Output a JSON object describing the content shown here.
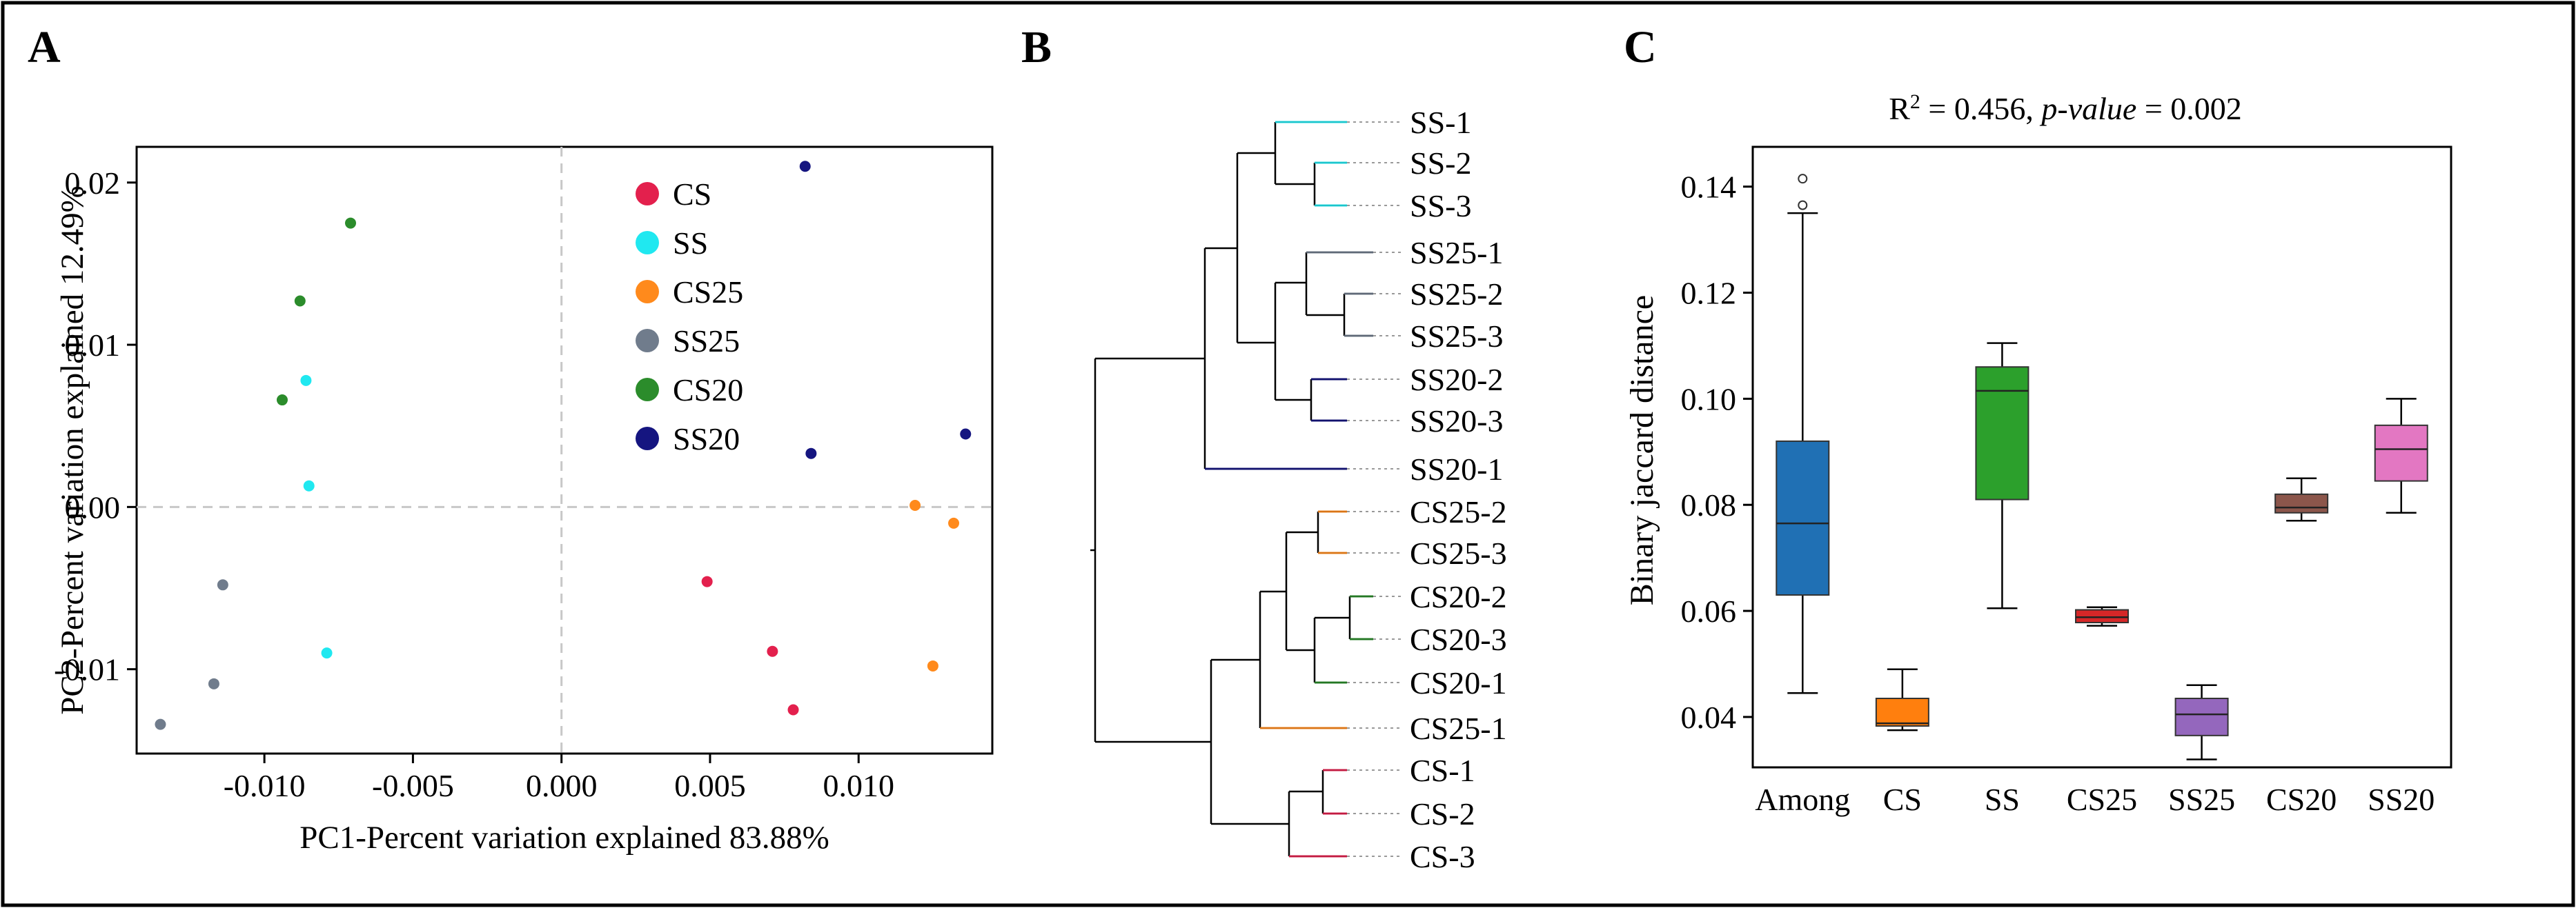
{
  "figure": {
    "labels": {
      "a": "A",
      "b": "B",
      "c": "C"
    }
  },
  "colors": {
    "CS": "#e3204d",
    "SS": "#20e8f0",
    "CS25": "#ff8a1c",
    "SS25": "#707c8c",
    "CS20": "#2b8c2b",
    "SS20": "#151580",
    "axis": "#000000",
    "zero": "#c8c8c8"
  },
  "chart_data": [
    {
      "panel": "A",
      "type": "scatter",
      "xlabel": "PC1-Percent variation explained 83.88%",
      "ylabel": "PC2-Percent variation explained 12.49%",
      "xlim": [
        -0.0143,
        0.0145
      ],
      "ylim": [
        -0.0152,
        0.0222
      ],
      "xticks": [
        -0.01,
        -0.005,
        0.0,
        0.005,
        0.01
      ],
      "xtick_labels": [
        "-0.010",
        "-0.005",
        "0.000",
        "0.005",
        "0.010"
      ],
      "yticks": [
        -0.01,
        0.0,
        0.01,
        0.02
      ],
      "ytick_labels": [
        "-0.01",
        "0.00",
        "0.01",
        "0.02"
      ],
      "legend_position": "top-center",
      "series": [
        {
          "name": "CS",
          "points": [
            [
              0.0049,
              -0.0046
            ],
            [
              0.0071,
              -0.0089
            ],
            [
              0.0078,
              -0.0125
            ]
          ]
        },
        {
          "name": "SS",
          "points": [
            [
              -0.0086,
              0.0078
            ],
            [
              -0.0085,
              0.0013
            ],
            [
              -0.0079,
              -0.009
            ]
          ]
        },
        {
          "name": "CS25",
          "points": [
            [
              0.0119,
              0.0001
            ],
            [
              0.0132,
              -0.001
            ],
            [
              0.0125,
              -0.0098
            ]
          ]
        },
        {
          "name": "SS25",
          "points": [
            [
              -0.0114,
              -0.0048
            ],
            [
              -0.0117,
              -0.0109
            ],
            [
              -0.0135,
              -0.0134
            ]
          ]
        },
        {
          "name": "CS20",
          "points": [
            [
              -0.0071,
              0.0175
            ],
            [
              -0.0088,
              0.0127
            ],
            [
              -0.0094,
              0.0066
            ]
          ]
        },
        {
          "name": "SS20",
          "points": [
            [
              0.0082,
              0.021
            ],
            [
              0.0084,
              0.0033
            ],
            [
              0.0136,
              0.0045
            ]
          ]
        }
      ]
    },
    {
      "panel": "B",
      "type": "dendrogram",
      "leaves": [
        "SS-1",
        "SS-2",
        "SS-3",
        "SS25-1",
        "SS25-2",
        "SS25-3",
        "SS20-2",
        "SS20-3",
        "SS20-1",
        "CS25-2",
        "CS25-3",
        "CS20-2",
        "CS20-3",
        "CS20-1",
        "CS25-1",
        "CS-1",
        "CS-2",
        "CS-3"
      ],
      "leaf_groups": [
        "SS",
        "SS",
        "SS",
        "SS25",
        "SS25",
        "SS25",
        "SS20",
        "SS20",
        "SS20",
        "CS25",
        "CS25",
        "CS20",
        "CS20",
        "CS20",
        "CS25",
        "CS",
        "CS",
        "CS"
      ]
    },
    {
      "panel": "C",
      "type": "box",
      "title_parts": [
        "R",
        "2",
        " = 0.456, ",
        "p-value",
        " = 0.002"
      ],
      "xlabel": "",
      "ylabel": "Binary jaccard distance",
      "ylim": [
        0.0305,
        0.1475
      ],
      "yticks": [
        0.04,
        0.06,
        0.08,
        0.1,
        0.12,
        0.14
      ],
      "ytick_labels": [
        "0.04",
        "0.06",
        "0.08",
        "0.10",
        "0.12",
        "0.14"
      ],
      "categories": [
        "Among",
        "CS",
        "SS",
        "CS25",
        "SS25",
        "CS20",
        "SS20"
      ],
      "box_colors": [
        "#2070b4",
        "#ff7f0e",
        "#2ca02c",
        "#d62728",
        "#9467bd",
        "#8c564b",
        "#e377c2"
      ],
      "boxes": [
        {
          "min": 0.0445,
          "q1": 0.063,
          "median": 0.0765,
          "q3": 0.092,
          "max": 0.135,
          "outliers": [
            0.1365,
            0.1415
          ]
        },
        {
          "min": 0.0375,
          "q1": 0.0383,
          "median": 0.0388,
          "q3": 0.0435,
          "max": 0.049,
          "outliers": []
        },
        {
          "min": 0.0605,
          "q1": 0.081,
          "median": 0.1015,
          "q3": 0.106,
          "max": 0.1105,
          "outliers": []
        },
        {
          "min": 0.0572,
          "q1": 0.0578,
          "median": 0.0588,
          "q3": 0.0602,
          "max": 0.0607,
          "outliers": []
        },
        {
          "min": 0.032,
          "q1": 0.0365,
          "median": 0.0405,
          "q3": 0.0435,
          "max": 0.046,
          "outliers": []
        },
        {
          "min": 0.077,
          "q1": 0.0785,
          "median": 0.0795,
          "q3": 0.082,
          "max": 0.085,
          "outliers": []
        },
        {
          "min": 0.0785,
          "q1": 0.0845,
          "median": 0.0905,
          "q3": 0.095,
          "max": 0.1,
          "outliers": []
        }
      ]
    }
  ]
}
